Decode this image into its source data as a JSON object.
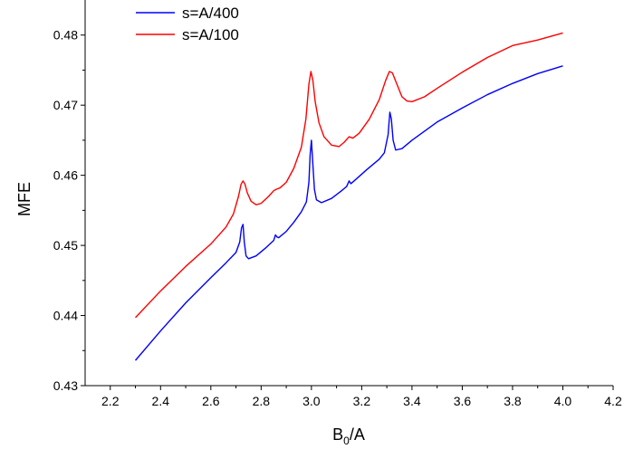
{
  "chart_data": {
    "type": "line",
    "title": "",
    "xlabel": "B",
    "xlabel_sub": "0",
    "xlabel_suffix": "/A",
    "ylabel": "MFE",
    "xlim": [
      2.1,
      4.2
    ],
    "ylim": [
      0.43,
      0.485
    ],
    "x_ticks": [
      2.2,
      2.4,
      2.6,
      2.8,
      3.0,
      3.2,
      3.4,
      3.6,
      3.8,
      4.0,
      4.2
    ],
    "x_tick_labels": [
      "2.2",
      "2.4",
      "2.6",
      "2.8",
      "3.0",
      "3.2",
      "3.4",
      "3.6",
      "3.8",
      "4.0",
      "4.2"
    ],
    "y_ticks": [
      0.43,
      0.44,
      0.45,
      0.46,
      0.47,
      0.48
    ],
    "y_tick_labels": [
      "0.43",
      "0.44",
      "0.45",
      "0.46",
      "0.47",
      "0.48"
    ],
    "grid": false,
    "legend_position": "top-left",
    "series": [
      {
        "name": "s=A/400",
        "color": "#0000ff",
        "points": [
          [
            2.3,
            0.4336
          ],
          [
            2.4,
            0.4378
          ],
          [
            2.5,
            0.4418
          ],
          [
            2.6,
            0.4454
          ],
          [
            2.66,
            0.4475
          ],
          [
            2.7,
            0.449
          ],
          [
            2.715,
            0.4505
          ],
          [
            2.722,
            0.4525
          ],
          [
            2.728,
            0.453
          ],
          [
            2.733,
            0.4505
          ],
          [
            2.74,
            0.4485
          ],
          [
            2.75,
            0.4481
          ],
          [
            2.78,
            0.4485
          ],
          [
            2.82,
            0.4497
          ],
          [
            2.85,
            0.4507
          ],
          [
            2.857,
            0.4515
          ],
          [
            2.863,
            0.4512
          ],
          [
            2.87,
            0.4511
          ],
          [
            2.9,
            0.452
          ],
          [
            2.93,
            0.4533
          ],
          [
            2.96,
            0.4548
          ],
          [
            2.98,
            0.4562
          ],
          [
            2.99,
            0.459
          ],
          [
            2.995,
            0.463
          ],
          [
            3.0,
            0.465
          ],
          [
            3.005,
            0.462
          ],
          [
            3.012,
            0.458
          ],
          [
            3.02,
            0.4565
          ],
          [
            3.04,
            0.4561
          ],
          [
            3.08,
            0.4567
          ],
          [
            3.12,
            0.4578
          ],
          [
            3.14,
            0.4584
          ],
          [
            3.15,
            0.4592
          ],
          [
            3.157,
            0.4588
          ],
          [
            3.17,
            0.4592
          ],
          [
            3.22,
            0.4608
          ],
          [
            3.27,
            0.4623
          ],
          [
            3.29,
            0.4632
          ],
          [
            3.305,
            0.4658
          ],
          [
            3.312,
            0.469
          ],
          [
            3.318,
            0.468
          ],
          [
            3.325,
            0.465
          ],
          [
            3.335,
            0.4636
          ],
          [
            3.36,
            0.4638
          ],
          [
            3.4,
            0.465
          ],
          [
            3.5,
            0.4676
          ],
          [
            3.6,
            0.4696
          ],
          [
            3.7,
            0.4715
          ],
          [
            3.8,
            0.4731
          ],
          [
            3.9,
            0.4745
          ],
          [
            4.0,
            0.4756
          ]
        ]
      },
      {
        "name": "s=A/100",
        "color": "#ff0000",
        "points": [
          [
            2.3,
            0.4397
          ],
          [
            2.4,
            0.4435
          ],
          [
            2.5,
            0.447
          ],
          [
            2.6,
            0.4502
          ],
          [
            2.66,
            0.4526
          ],
          [
            2.69,
            0.4545
          ],
          [
            2.71,
            0.457
          ],
          [
            2.72,
            0.4587
          ],
          [
            2.728,
            0.4592
          ],
          [
            2.736,
            0.4587
          ],
          [
            2.745,
            0.4575
          ],
          [
            2.76,
            0.4563
          ],
          [
            2.78,
            0.4558
          ],
          [
            2.8,
            0.456
          ],
          [
            2.83,
            0.457
          ],
          [
            2.85,
            0.4578
          ],
          [
            2.86,
            0.458
          ],
          [
            2.875,
            0.4582
          ],
          [
            2.9,
            0.459
          ],
          [
            2.93,
            0.461
          ],
          [
            2.96,
            0.464
          ],
          [
            2.978,
            0.468
          ],
          [
            2.99,
            0.473
          ],
          [
            2.998,
            0.4748
          ],
          [
            3.006,
            0.4735
          ],
          [
            3.015,
            0.4705
          ],
          [
            3.03,
            0.4675
          ],
          [
            3.05,
            0.4655
          ],
          [
            3.08,
            0.4643
          ],
          [
            3.11,
            0.4641
          ],
          [
            3.13,
            0.4647
          ],
          [
            3.15,
            0.4655
          ],
          [
            3.165,
            0.4653
          ],
          [
            3.19,
            0.466
          ],
          [
            3.23,
            0.468
          ],
          [
            3.27,
            0.4708
          ],
          [
            3.295,
            0.4735
          ],
          [
            3.31,
            0.4748
          ],
          [
            3.322,
            0.4746
          ],
          [
            3.34,
            0.473
          ],
          [
            3.36,
            0.4712
          ],
          [
            3.38,
            0.4706
          ],
          [
            3.4,
            0.4705
          ],
          [
            3.45,
            0.4712
          ],
          [
            3.5,
            0.4724
          ],
          [
            3.6,
            0.4747
          ],
          [
            3.7,
            0.4768
          ],
          [
            3.8,
            0.4785
          ],
          [
            3.9,
            0.4793
          ],
          [
            4.0,
            0.4803
          ]
        ]
      }
    ]
  }
}
